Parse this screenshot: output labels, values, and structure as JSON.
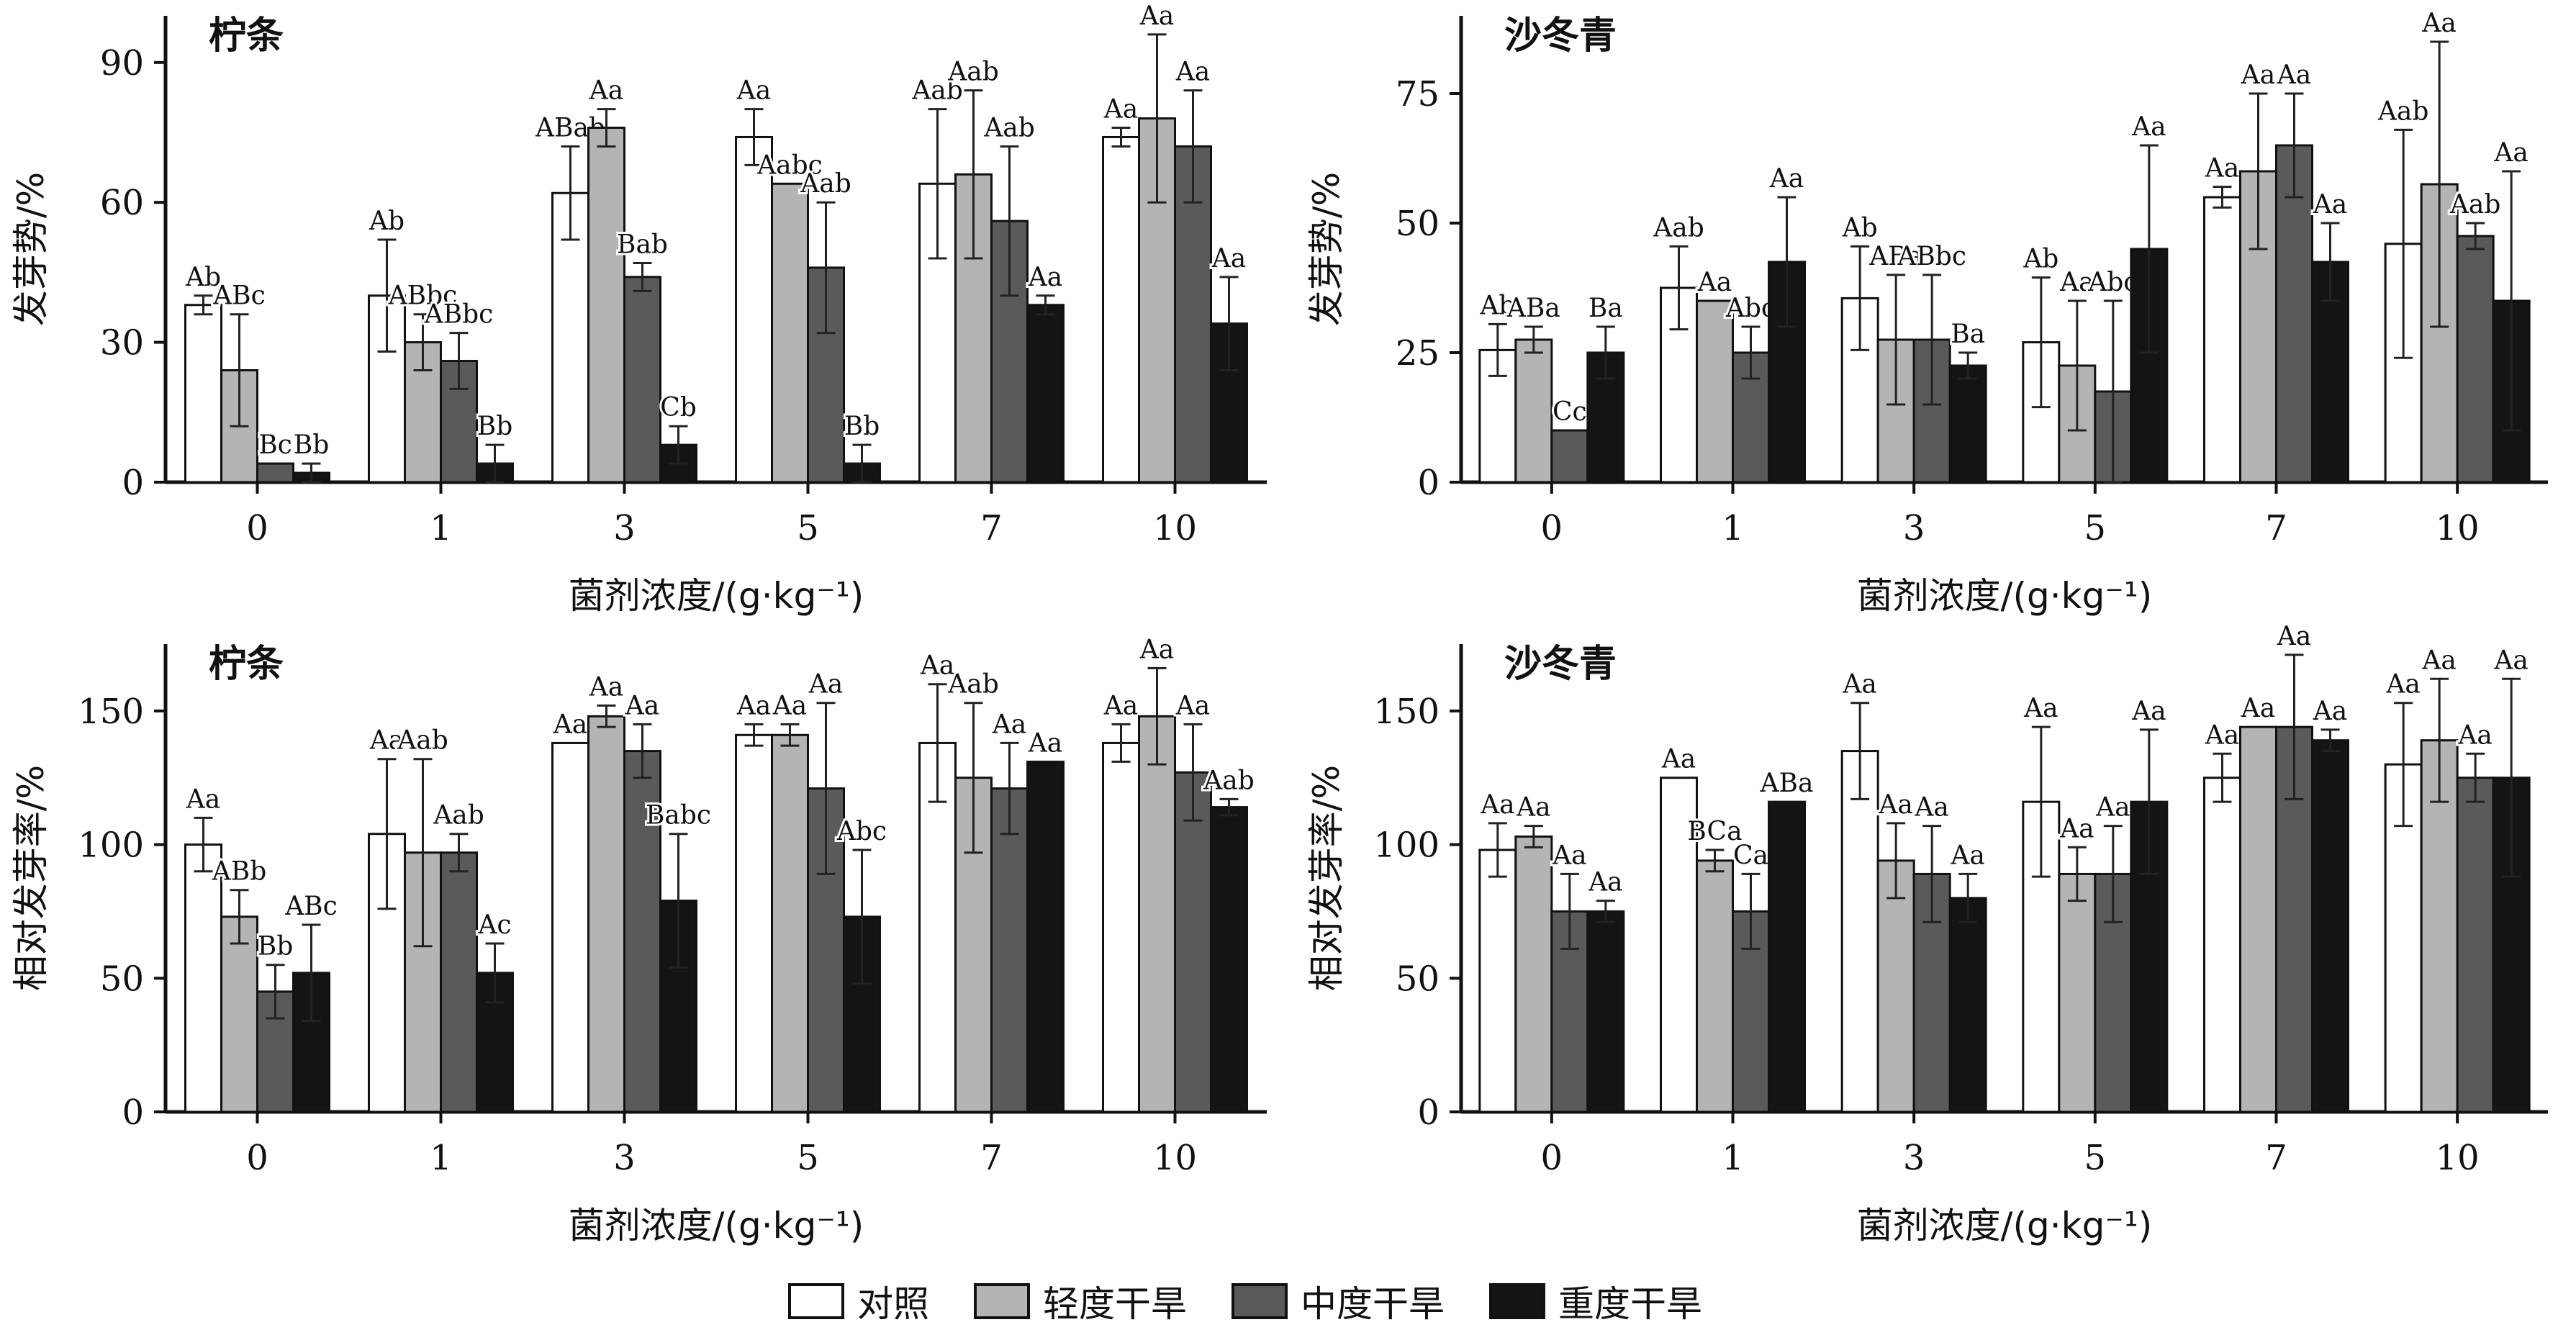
{
  "chart_data": [
    {
      "type": "bar",
      "title": "柠条",
      "ylabel": "发芽势/%",
      "xlabel": "菌剂浓度/(g·kg⁻¹)",
      "categories": [
        "0",
        "1",
        "3",
        "5",
        "7",
        "10"
      ],
      "ylim": [
        0,
        100
      ],
      "yticks": [
        0,
        30,
        60,
        90
      ],
      "grid": false,
      "series": [
        {
          "name": "对照",
          "values": [
            38,
            40,
            62,
            74,
            64,
            74
          ],
          "errors": [
            2,
            12,
            10,
            6,
            16,
            2
          ],
          "labels": [
            "Ab",
            "Ab",
            "ABab",
            "Aa",
            "Aab",
            "Aa"
          ]
        },
        {
          "name": "轻度干旱",
          "values": [
            24,
            30,
            76,
            64,
            66,
            78
          ],
          "errors": [
            12,
            6,
            4,
            0,
            18,
            18
          ],
          "labels": [
            "ABc",
            "ABbc",
            "Aa",
            "Aabc",
            "Aab",
            "Aa"
          ]
        },
        {
          "name": "中度干旱",
          "values": [
            4,
            26,
            44,
            46,
            56,
            72
          ],
          "errors": [
            0,
            6,
            3,
            14,
            16,
            12
          ],
          "labels": [
            "Bc",
            "ABbc",
            "Bab",
            "Aab",
            "Aab",
            "Aa"
          ]
        },
        {
          "name": "重度干旱",
          "values": [
            2,
            4,
            8,
            4,
            38,
            34
          ],
          "errors": [
            2,
            4,
            4,
            4,
            2,
            10
          ],
          "labels": [
            "Bb",
            "Bb",
            "Cb",
            "Bb",
            "Aa",
            "Aa"
          ]
        }
      ]
    },
    {
      "type": "bar",
      "title": "沙冬青",
      "ylabel": "发芽势/%",
      "xlabel": "菌剂浓度/(g·kg⁻¹)",
      "categories": [
        "0",
        "1",
        "3",
        "5",
        "7",
        "10"
      ],
      "ylim": [
        0,
        90
      ],
      "yticks": [
        0,
        25,
        50,
        75
      ],
      "grid": false,
      "series": [
        {
          "name": "对照",
          "values": [
            25.5,
            37.5,
            35.5,
            27,
            55,
            46
          ],
          "errors": [
            5,
            8,
            10,
            12.5,
            2,
            22
          ],
          "labels": [
            "Ab",
            "Aab",
            "Ab",
            "Ab",
            "Aa",
            "Aab"
          ]
        },
        {
          "name": "轻度干旱",
          "values": [
            27.5,
            35,
            27.5,
            22.5,
            60,
            57.5
          ],
          "errors": [
            2.5,
            0,
            12.5,
            12.5,
            15,
            27.5
          ],
          "labels": [
            "ABa",
            "Aa",
            "ABa",
            "Aa",
            "Aa",
            "Aa"
          ]
        },
        {
          "name": "中度干旱",
          "values": [
            10,
            25,
            27.5,
            17.5,
            65,
            47.5
          ],
          "errors": [
            0,
            5,
            12.5,
            17.5,
            10,
            2.5
          ],
          "labels": [
            "Cc",
            "Abc",
            "ABbc",
            "Abc",
            "Aa",
            "Aab"
          ]
        },
        {
          "name": "重度干旱",
          "values": [
            25,
            42.5,
            22.5,
            45,
            42.5,
            35
          ],
          "errors": [
            5,
            12.5,
            2.5,
            20,
            7.5,
            25
          ],
          "labels": [
            "Ba",
            "Aa",
            "Ba",
            "Aa",
            "Aa",
            "Aa"
          ]
        }
      ]
    },
    {
      "type": "bar",
      "title": "柠条",
      "ylabel": "相对发芽率/%",
      "xlabel": "菌剂浓度/(g·kg⁻¹)",
      "categories": [
        "0",
        "1",
        "3",
        "5",
        "7",
        "10"
      ],
      "ylim": [
        0,
        175
      ],
      "yticks": [
        0,
        50,
        100,
        150
      ],
      "grid": false,
      "series": [
        {
          "name": "对照",
          "values": [
            100,
            104,
            138,
            141,
            138,
            138
          ],
          "errors": [
            10,
            28,
            0,
            4,
            22,
            7
          ],
          "labels": [
            "Aa",
            "Aa",
            "Aa",
            "Aa",
            "Aa",
            "Aa"
          ]
        },
        {
          "name": "轻度干旱",
          "values": [
            73,
            97,
            148,
            141,
            125,
            148
          ],
          "errors": [
            10,
            35,
            4,
            4,
            28,
            18
          ],
          "labels": [
            "ABb",
            "Aab",
            "Aa",
            "Aa",
            "Aab",
            "Aa"
          ]
        },
        {
          "name": "中度干旱",
          "values": [
            45,
            97,
            135,
            121,
            121,
            127
          ],
          "errors": [
            10,
            7,
            10,
            32,
            17,
            18
          ],
          "labels": [
            "Bb",
            "Aab",
            "Aa",
            "Aa",
            "Aa",
            "Aa"
          ]
        },
        {
          "name": "重度干旱",
          "values": [
            52,
            52,
            79,
            73,
            131,
            114
          ],
          "errors": [
            18,
            11,
            25,
            25,
            0,
            3
          ],
          "labels": [
            "ABc",
            "Ac",
            "Babc",
            "Abc",
            "Aa",
            "Aab"
          ]
        }
      ]
    },
    {
      "type": "bar",
      "title": "沙冬青",
      "ylabel": "相对发芽率/%",
      "xlabel": "菌剂浓度/(g·kg⁻¹)",
      "categories": [
        "0",
        "1",
        "3",
        "5",
        "7",
        "10"
      ],
      "ylim": [
        0,
        175
      ],
      "yticks": [
        0,
        50,
        100,
        150
      ],
      "grid": false,
      "series": [
        {
          "name": "对照",
          "values": [
            98,
            125,
            135,
            116,
            125,
            130
          ],
          "errors": [
            10,
            0,
            18,
            28,
            9,
            23
          ],
          "labels": [
            "Aa",
            "Aa",
            "Aa",
            "Aa",
            "Aa",
            "Aa"
          ]
        },
        {
          "name": "轻度干旱",
          "values": [
            103,
            94,
            94,
            89,
            144,
            139
          ],
          "errors": [
            4,
            4,
            14,
            10,
            0,
            23
          ],
          "labels": [
            "Aa",
            "BCa",
            "Aa",
            "Aa",
            "Aa",
            "Aa"
          ]
        },
        {
          "name": "中度干旱",
          "values": [
            75,
            75,
            89,
            89,
            144,
            125
          ],
          "errors": [
            14,
            14,
            18,
            18,
            27,
            9
          ],
          "labels": [
            "Aa",
            "Ca",
            "Aa",
            "Aa",
            "Aa",
            "Aa"
          ]
        },
        {
          "name": "重度干旱",
          "values": [
            75,
            116,
            80,
            116,
            139,
            125
          ],
          "errors": [
            4,
            0,
            9,
            27,
            4,
            37
          ],
          "labels": [
            "Aa",
            "ABa",
            "Aa",
            "Aa",
            "Aa",
            "Aa"
          ]
        }
      ]
    }
  ],
  "legend": [
    {
      "label": "对照",
      "color": "#ffffff"
    },
    {
      "label": "轻度干旱",
      "color": "#b4b4b4"
    },
    {
      "label": "中度干旱",
      "color": "#5a5a5a"
    },
    {
      "label": "重度干旱",
      "color": "#141414"
    }
  ]
}
